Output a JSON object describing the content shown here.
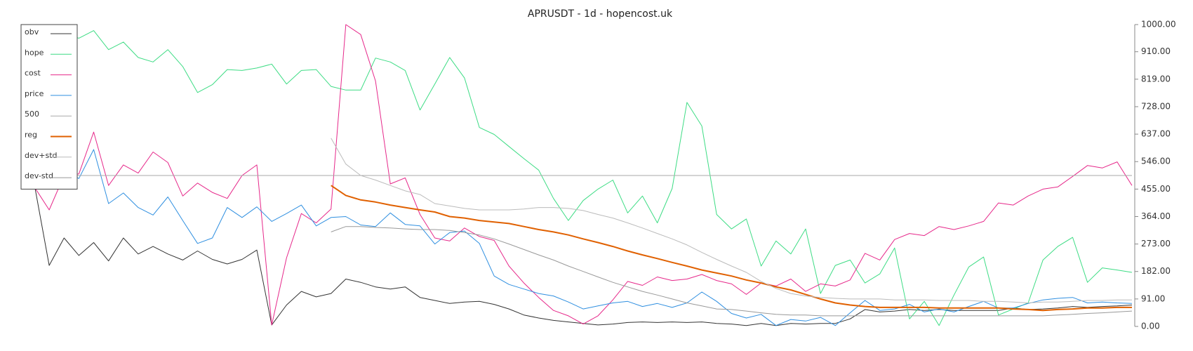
{
  "chart_data": {
    "type": "line",
    "title": "APRUSDT - 1d - hopencost.uk",
    "ylim": [
      0,
      1000
    ],
    "yticks": [
      {
        "value": 0,
        "label": "0.00"
      },
      {
        "value": 91,
        "label": "91.00"
      },
      {
        "value": 182,
        "label": "182.00"
      },
      {
        "value": 273,
        "label": "273.00"
      },
      {
        "value": 364,
        "label": "364.00"
      },
      {
        "value": 455,
        "label": "455.00"
      },
      {
        "value": 546,
        "label": "546.00"
      },
      {
        "value": 637,
        "label": "637.00"
      },
      {
        "value": 728,
        "label": "728.00"
      },
      {
        "value": 819,
        "label": "819.00"
      },
      {
        "value": 910,
        "label": "910.00"
      },
      {
        "value": 1000,
        "label": "1000.00"
      }
    ],
    "y_axis_side": "right",
    "grid": false,
    "legend": "upper left",
    "series": [
      {
        "name": "obv",
        "color": "#333333",
        "width": 1,
        "values": [
          470,
          202,
          293,
          235,
          278,
          217,
          293,
          240,
          265,
          240,
          220,
          250,
          222,
          207,
          222,
          253,
          5,
          71,
          116,
          98,
          109,
          157,
          146,
          131,
          124,
          131,
          96,
          86,
          76,
          81,
          83,
          73,
          58,
          38,
          28,
          20,
          15,
          10,
          5,
          8,
          13,
          15,
          13,
          15,
          13,
          15,
          10,
          8,
          3,
          10,
          3,
          10,
          8,
          10,
          10,
          25,
          56,
          48,
          51,
          56,
          53,
          56,
          53,
          53,
          53,
          53,
          61,
          56,
          58,
          61,
          66,
          63,
          66,
          68,
          71
        ]
      },
      {
        "name": "hope",
        "color": "#3ddc84",
        "width": 1,
        "values": [
          949,
          960,
          967,
          955,
          980,
          917,
          942,
          891,
          876,
          917,
          861,
          775,
          801,
          851,
          848,
          856,
          869,
          803,
          848,
          851,
          795,
          783,
          783,
          889,
          876,
          848,
          717,
          803,
          891,
          823,
          659,
          636,
          596,
          556,
          518,
          424,
          351,
          417,
          455,
          485,
          376,
          432,
          343,
          457,
          742,
          664,
          371,
          323,
          356,
          200,
          283,
          240,
          323,
          109,
          202,
          220,
          144,
          174,
          260,
          25,
          83,
          3,
          104,
          197,
          230,
          38,
          58,
          78,
          220,
          265,
          295,
          146,
          194,
          187,
          179
        ]
      },
      {
        "name": "cost",
        "color": "#e6288a",
        "width": 1,
        "values": [
          462,
          386,
          500,
          505,
          644,
          467,
          535,
          508,
          578,
          543,
          432,
          475,
          444,
          424,
          500,
          535,
          5,
          227,
          374,
          343,
          389,
          1000,
          967,
          813,
          472,
          492,
          371,
          293,
          283,
          326,
          298,
          285,
          200,
          144,
          96,
          53,
          35,
          8,
          35,
          88,
          149,
          136,
          164,
          152,
          157,
          172,
          152,
          141,
          106,
          144,
          134,
          157,
          116,
          141,
          134,
          154,
          242,
          220,
          288,
          308,
          301,
          331,
          321,
          333,
          348,
          409,
          402,
          432,
          455,
          462,
          497,
          533,
          525,
          545,
          467
        ]
      },
      {
        "name": "price",
        "color": "#2f8fe0",
        "width": 1,
        "values": [
          487,
          490,
          518,
          490,
          586,
          407,
          442,
          394,
          369,
          429,
          351,
          275,
          293,
          394,
          361,
          396,
          348,
          374,
          402,
          333,
          361,
          364,
          336,
          331,
          376,
          338,
          333,
          273,
          311,
          316,
          275,
          167,
          139,
          124,
          109,
          101,
          81,
          58,
          68,
          78,
          83,
          66,
          76,
          63,
          78,
          114,
          83,
          43,
          28,
          40,
          3,
          23,
          18,
          30,
          3,
          45,
          86,
          53,
          58,
          73,
          48,
          58,
          48,
          66,
          83,
          61,
          61,
          76,
          88,
          93,
          96,
          78,
          81,
          78,
          76
        ]
      },
      {
        "name": "500",
        "color": "#aaaaaa",
        "width": 1,
        "values": [
          500,
          500,
          500,
          500,
          500,
          500,
          500,
          500,
          500,
          500,
          500,
          500,
          500,
          500,
          500,
          500,
          500,
          500,
          500,
          500,
          500,
          500,
          500,
          500,
          500,
          500,
          500,
          500,
          500,
          500,
          500,
          500,
          500,
          500,
          500,
          500,
          500,
          500,
          500,
          500,
          500,
          500,
          500,
          500,
          500,
          500,
          500,
          500,
          500,
          500,
          500,
          500,
          500,
          500,
          500,
          500,
          500,
          500,
          500,
          500,
          500,
          500,
          500,
          500,
          500,
          500,
          500,
          500,
          500,
          500,
          500,
          500,
          500,
          500,
          500
        ]
      },
      {
        "name": "reg",
        "color": "#e06000",
        "width": 2,
        "values": [
          null,
          null,
          null,
          null,
          null,
          null,
          null,
          null,
          null,
          null,
          null,
          null,
          null,
          null,
          null,
          null,
          null,
          null,
          null,
          null,
          467,
          434,
          419,
          412,
          402,
          394,
          386,
          379,
          364,
          359,
          351,
          346,
          341,
          331,
          321,
          313,
          303,
          290,
          278,
          265,
          250,
          237,
          225,
          212,
          200,
          187,
          177,
          167,
          154,
          144,
          131,
          121,
          106,
          91,
          78,
          71,
          66,
          63,
          63,
          63,
          63,
          61,
          61,
          61,
          61,
          61,
          58,
          56,
          53,
          56,
          58,
          61,
          61,
          63,
          63
        ]
      },
      {
        "name": "dev+std",
        "color": "#bbbbbb",
        "width": 1,
        "values": [
          null,
          null,
          null,
          null,
          null,
          null,
          null,
          null,
          null,
          null,
          null,
          null,
          null,
          null,
          null,
          null,
          null,
          null,
          null,
          null,
          624,
          538,
          500,
          485,
          467,
          449,
          437,
          407,
          399,
          391,
          386,
          386,
          386,
          389,
          394,
          394,
          391,
          384,
          371,
          359,
          343,
          326,
          308,
          290,
          270,
          245,
          222,
          200,
          179,
          149,
          126,
          109,
          101,
          96,
          93,
          91,
          91,
          91,
          88,
          88,
          88,
          86,
          86,
          86,
          83,
          83,
          81,
          78,
          81,
          81,
          83,
          86,
          86,
          88,
          88
        ]
      },
      {
        "name": "dev-std",
        "color": "#999999",
        "width": 1,
        "values": [
          null,
          null,
          null,
          null,
          null,
          null,
          null,
          null,
          null,
          null,
          null,
          null,
          null,
          null,
          null,
          null,
          null,
          null,
          null,
          null,
          313,
          331,
          331,
          328,
          326,
          323,
          321,
          321,
          318,
          311,
          303,
          290,
          273,
          255,
          237,
          220,
          200,
          182,
          164,
          146,
          131,
          116,
          104,
          91,
          78,
          68,
          58,
          56,
          51,
          45,
          40,
          38,
          38,
          35,
          35,
          35,
          35,
          35,
          35,
          35,
          35,
          35,
          35,
          35,
          35,
          35,
          35,
          35,
          35,
          38,
          40,
          43,
          45,
          48,
          51
        ]
      }
    ]
  }
}
